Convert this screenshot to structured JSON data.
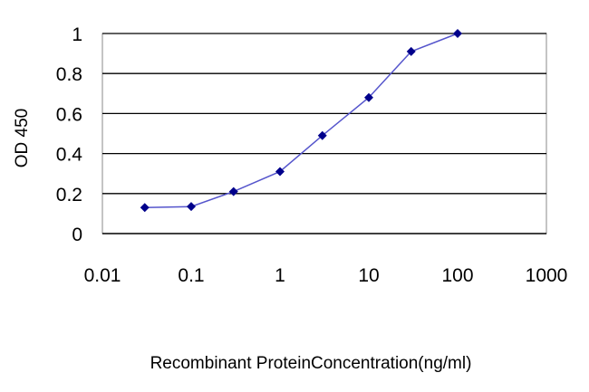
{
  "chart_data": {
    "type": "line",
    "title": "",
    "xlabel": "Recombinant ProteinConcentration(ng/ml)",
    "ylabel": "OD 450",
    "x_scale": "log",
    "xlim": [
      0.01,
      1000
    ],
    "ylim": [
      0,
      1
    ],
    "x_ticks": [
      "0.01",
      "0.1",
      "1",
      "10",
      "100",
      "1000"
    ],
    "y_ticks": [
      "0",
      "0.2",
      "0.4",
      "0.6",
      "0.8",
      "1"
    ],
    "grid": "horizontal",
    "legend": "none",
    "series": [
      {
        "x": [
          0.03,
          0.1,
          0.3,
          1,
          3,
          10,
          30,
          100
        ],
        "y": [
          0.13,
          0.135,
          0.21,
          0.31,
          0.49,
          0.68,
          0.91,
          1.0
        ],
        "color": "#00008b",
        "line_color": "#5555cc"
      }
    ],
    "plot_background": "#ffffff",
    "grid_color": "#000000"
  }
}
